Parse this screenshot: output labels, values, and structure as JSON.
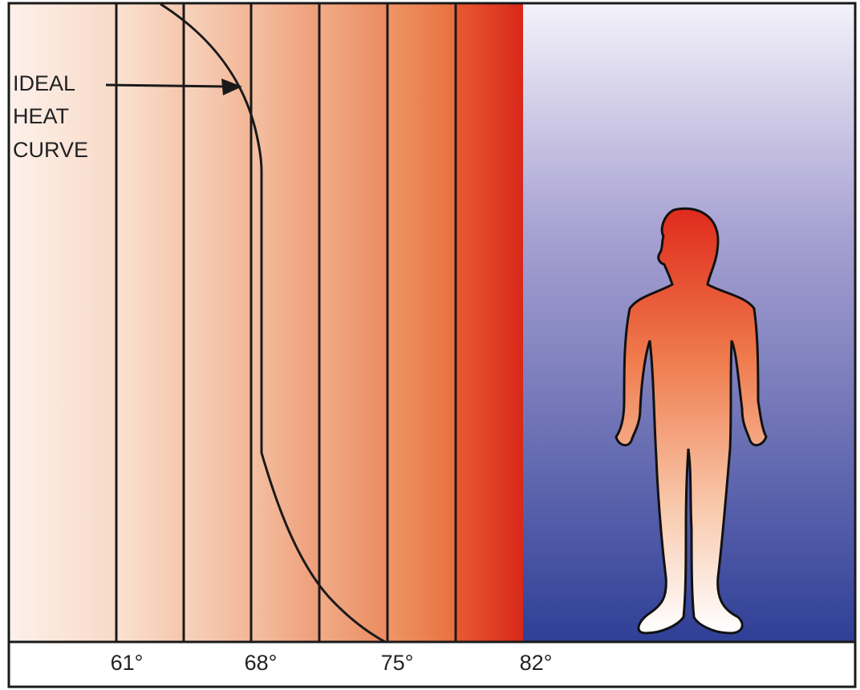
{
  "annotation": {
    "lines": [
      "IDEAL",
      "HEAT",
      "CURVE"
    ]
  },
  "temperature_labels": [
    "61°",
    "68°",
    "75°",
    "82°"
  ]
}
